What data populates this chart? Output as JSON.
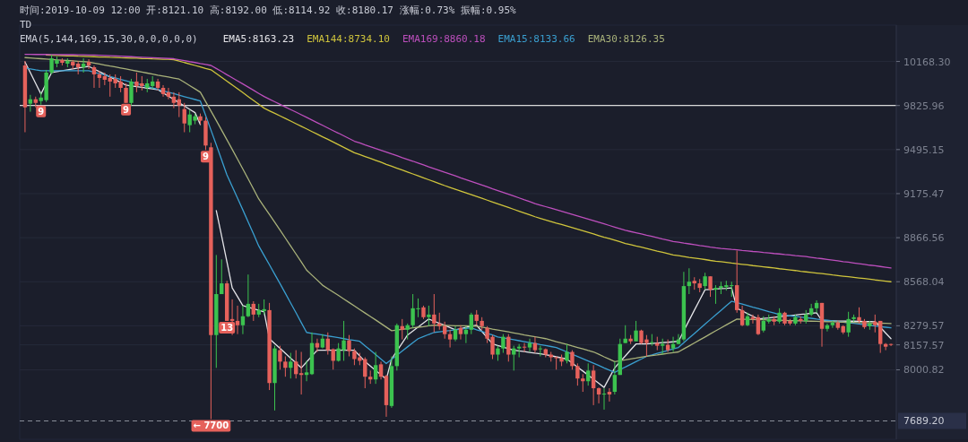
{
  "chart_data": {
    "type": "candlestick",
    "title": "时间:2019-10-09 12:00  开:8121.10  高:8192.00  低:8114.92  收:8180.17  涨幅:0.73%  振幅:0.95%",
    "annotations": [
      "TD",
      "EMA(5,144,169,15,30,0,0,0,0,0)",
      {
        "text": "9",
        "y": 9833
      },
      {
        "text": "9",
        "y": 9846
      },
      {
        "text": "9",
        "y": 9492
      },
      {
        "text": "13",
        "y": 8311
      },
      {
        "text": "← 7700",
        "y": 7700
      }
    ],
    "categories": [
      null,
      null,
      null,
      null,
      null,
      null,
      null,
      null,
      null,
      null,
      null,
      null,
      null,
      null,
      null,
      null,
      null,
      null,
      null,
      null,
      null,
      null,
      null,
      null,
      null,
      null,
      null,
      null,
      null,
      null,
      null,
      null,
      null,
      null,
      null,
      null,
      null,
      null,
      null,
      null,
      null,
      null,
      null,
      null,
      null,
      null,
      null,
      null,
      null,
      null,
      null,
      null,
      null,
      null,
      null,
      null,
      null,
      null,
      null,
      null,
      null,
      null,
      null,
      null,
      null,
      null,
      null,
      null,
      null,
      null,
      null,
      null,
      null,
      null,
      null,
      null,
      null,
      null,
      null,
      null,
      null,
      null,
      null,
      null,
      null,
      null,
      null,
      null,
      null,
      null,
      null,
      null,
      null,
      null,
      null,
      null,
      null,
      null,
      null,
      null,
      null,
      null,
      null,
      null,
      null,
      null,
      null,
      null,
      null,
      null,
      null,
      null,
      null,
      null,
      null,
      null,
      null,
      null,
      null,
      null,
      null,
      null,
      null,
      null,
      null,
      null,
      null,
      null,
      null,
      null,
      null,
      null,
      null,
      null,
      null,
      null,
      null,
      null,
      null,
      null,
      null,
      null,
      null,
      null,
      null,
      null,
      null,
      null,
      null,
      null,
      null,
      null,
      null,
      null,
      null,
      null,
      null,
      null,
      null,
      null,
      null,
      null,
      null,
      null
    ],
    "ohlc": [
      [
        10137,
        10172,
        9624,
        9812
      ],
      [
        9840,
        9908,
        9779,
        9874
      ],
      [
        9874,
        9894,
        9812,
        9846
      ],
      [
        9860,
        9928,
        9833,
        9887
      ],
      [
        9867,
        10102,
        9853,
        10081
      ],
      [
        10081,
        10221,
        10067,
        10193
      ],
      [
        10151,
        10207,
        10123,
        10179
      ],
      [
        10179,
        10193,
        10137,
        10158
      ],
      [
        10151,
        10193,
        10123,
        10172
      ],
      [
        10165,
        10179,
        10109,
        10137
      ],
      [
        10151,
        10172,
        10067,
        10123
      ],
      [
        10123,
        10193,
        10081,
        10151
      ],
      [
        10165,
        10186,
        10109,
        10137
      ],
      [
        10123,
        10137,
        9962,
        10067
      ],
      [
        10067,
        10095,
        9962,
        10039
      ],
      [
        10053,
        10081,
        9983,
        10025
      ],
      [
        10039,
        10067,
        9894,
        10011
      ],
      [
        10032,
        10067,
        9962,
        9997
      ],
      [
        10011,
        10053,
        9928,
        9962
      ],
      [
        9962,
        9997,
        9846,
        9846
      ],
      [
        9846,
        10032,
        9826,
        10011
      ],
      [
        10011,
        10081,
        9928,
        9976
      ],
      [
        9997,
        10053,
        9942,
        9976
      ],
      [
        9962,
        10032,
        9928,
        9997
      ],
      [
        9976,
        10053,
        9955,
        10011
      ],
      [
        10011,
        10032,
        9942,
        9962
      ],
      [
        9962,
        9983,
        9894,
        9914
      ],
      [
        9928,
        9962,
        9874,
        9894
      ],
      [
        9894,
        9928,
        9806,
        9846
      ],
      [
        9874,
        9928,
        9738,
        9826
      ],
      [
        9799,
        9846,
        9624,
        9690
      ],
      [
        9677,
        9792,
        9624,
        9758
      ],
      [
        9711,
        9765,
        9684,
        9744
      ],
      [
        9744,
        9765,
        9684,
        9711
      ],
      [
        9711,
        9738,
        9492,
        9525
      ],
      [
        9512,
        9545,
        7700,
        8220
      ],
      [
        8220,
        8748,
        8013,
        8486
      ],
      [
        8486,
        8718,
        8486,
        8557
      ],
      [
        8557,
        8574,
        8311,
        8311
      ],
      [
        8323,
        8451,
        8220,
        8311
      ],
      [
        8311,
        8410,
        8226,
        8283
      ],
      [
        8283,
        8410,
        8226,
        8341
      ],
      [
        8341,
        8616,
        8335,
        8422
      ],
      [
        8422,
        8439,
        8311,
        8352
      ],
      [
        8352,
        8422,
        8335,
        8381
      ],
      [
        8375,
        8451,
        8352,
        8387
      ],
      [
        8381,
        8428,
        7876,
        7919
      ],
      [
        7919,
        8152,
        7752,
        8135
      ],
      [
        8124,
        8152,
        8002,
        8052
      ],
      [
        8052,
        8085,
        7958,
        8013
      ],
      [
        8013,
        8107,
        7947,
        8052
      ],
      [
        8052,
        8124,
        7947,
        7974
      ],
      [
        7980,
        8113,
        7849,
        7969
      ],
      [
        7969,
        8057,
        7930,
        7985
      ],
      [
        7974,
        8237,
        7969,
        8169
      ],
      [
        8169,
        8197,
        8113,
        8141
      ],
      [
        8141,
        8226,
        8135,
        8197
      ],
      [
        8197,
        8237,
        8096,
        8124
      ],
      [
        8130,
        8135,
        8002,
        8057
      ],
      [
        8057,
        8169,
        8052,
        8135
      ],
      [
        8124,
        8311,
        8057,
        8186
      ],
      [
        8186,
        8220,
        8085,
        8118
      ],
      [
        8118,
        8135,
        8030,
        8068
      ],
      [
        8079,
        8107,
        8030,
        8057
      ],
      [
        8068,
        8079,
        7887,
        7958
      ],
      [
        7958,
        7996,
        7914,
        7941
      ],
      [
        7941,
        8113,
        7914,
        8030
      ],
      [
        8035,
        8052,
        7941,
        7958
      ],
      [
        7963,
        7969,
        7714,
        7784
      ],
      [
        7779,
        8085,
        7768,
        8024
      ],
      [
        8024,
        8294,
        7996,
        8283
      ],
      [
        8277,
        8323,
        8192,
        8254
      ],
      [
        8254,
        8294,
        8192,
        8283
      ],
      [
        8283,
        8486,
        8266,
        8393
      ],
      [
        8387,
        8457,
        8335,
        8393
      ],
      [
        8399,
        8410,
        8323,
        8335
      ],
      [
        8335,
        8410,
        8277,
        8352
      ],
      [
        8352,
        8486,
        8237,
        8294
      ],
      [
        8294,
        8364,
        8254,
        8277
      ],
      [
        8277,
        8306,
        8197,
        8226
      ],
      [
        8226,
        8254,
        8141,
        8192
      ],
      [
        8192,
        8277,
        8180,
        8254
      ],
      [
        8266,
        8283,
        8192,
        8226
      ],
      [
        8226,
        8277,
        8169,
        8254
      ],
      [
        8254,
        8364,
        8226,
        8352
      ],
      [
        8352,
        8381,
        8283,
        8311
      ],
      [
        8311,
        8335,
        8254,
        8277
      ],
      [
        8266,
        8277,
        8169,
        8197
      ],
      [
        8209,
        8220,
        8068,
        8096
      ],
      [
        8096,
        8152,
        8057,
        8135
      ],
      [
        8135,
        8226,
        8107,
        8209
      ],
      [
        8209,
        8226,
        8052,
        8096
      ],
      [
        8096,
        8152,
        7996,
        8135
      ],
      [
        8135,
        8163,
        8079,
        8146
      ],
      [
        8146,
        8169,
        8113,
        8141
      ],
      [
        8141,
        8197,
        8113,
        8169
      ],
      [
        8169,
        8209,
        8107,
        8124
      ],
      [
        8130,
        8152,
        8085,
        8135
      ],
      [
        8130,
        8135,
        8079,
        8096
      ],
      [
        8096,
        8113,
        8052,
        8079
      ],
      [
        8079,
        8085,
        8002,
        8074
      ],
      [
        8074,
        8096,
        8024,
        8052
      ],
      [
        8057,
        8163,
        8041,
        8113
      ],
      [
        8113,
        8124,
        8002,
        8024
      ],
      [
        8024,
        8041,
        7903,
        7947
      ],
      [
        7947,
        7974,
        7865,
        7930
      ],
      [
        7930,
        8041,
        7903,
        7996
      ],
      [
        7996,
        8030,
        7784,
        7887
      ],
      [
        7887,
        7892,
        7795,
        7849
      ],
      [
        7849,
        7887,
        7757,
        7854
      ],
      [
        7865,
        7887,
        7806,
        7849
      ],
      [
        7865,
        8052,
        7849,
        7969
      ],
      [
        7969,
        8197,
        7969,
        8163
      ],
      [
        8169,
        8283,
        8169,
        8197
      ],
      [
        8197,
        8220,
        8163,
        8180
      ],
      [
        8180,
        8311,
        8180,
        8249
      ],
      [
        8249,
        8254,
        8163,
        8169
      ],
      [
        8192,
        8220,
        8085,
        8169
      ],
      [
        8169,
        8226,
        8152,
        8175
      ],
      [
        8169,
        8209,
        8124,
        8152
      ],
      [
        8152,
        8197,
        8096,
        8163
      ],
      [
        8158,
        8192,
        8113,
        8124
      ],
      [
        8135,
        8209,
        8113,
        8163
      ],
      [
        8163,
        8226,
        8163,
        8192
      ],
      [
        8192,
        8634,
        8180,
        8539
      ],
      [
        8539,
        8658,
        8486,
        8568
      ],
      [
        8574,
        8598,
        8515,
        8557
      ],
      [
        8557,
        8586,
        8498,
        8527
      ],
      [
        8539,
        8628,
        8515,
        8604
      ],
      [
        8604,
        8604,
        8468,
        8515
      ],
      [
        8515,
        8545,
        8422,
        8527
      ],
      [
        8527,
        8568,
        8486,
        8539
      ],
      [
        8533,
        8574,
        8509,
        8545
      ],
      [
        8539,
        8568,
        8468,
        8545
      ],
      [
        8545,
        8778,
        8364,
        8381
      ],
      [
        8381,
        8410,
        8277,
        8283
      ],
      [
        8283,
        8364,
        8277,
        8341
      ],
      [
        8335,
        8352,
        8294,
        8323
      ],
      [
        8335,
        8352,
        8220,
        8226
      ],
      [
        8249,
        8341,
        8237,
        8311
      ],
      [
        8306,
        8352,
        8294,
        8323
      ],
      [
        8323,
        8341,
        8283,
        8306
      ],
      [
        8306,
        8393,
        8294,
        8364
      ],
      [
        8364,
        8370,
        8283,
        8294
      ],
      [
        8311,
        8323,
        8283,
        8294
      ],
      [
        8294,
        8352,
        8283,
        8335
      ],
      [
        8323,
        8341,
        8294,
        8311
      ],
      [
        8311,
        8381,
        8294,
        8352
      ],
      [
        8352,
        8422,
        8341,
        8393
      ],
      [
        8393,
        8445,
        8364,
        8428
      ],
      [
        8428,
        8428,
        8146,
        8260
      ],
      [
        8260,
        8294,
        8243,
        8283
      ],
      [
        8283,
        8311,
        8266,
        8300
      ],
      [
        8300,
        8311,
        8254,
        8266
      ],
      [
        8277,
        8283,
        8226,
        8237
      ],
      [
        8237,
        8370,
        8209,
        8323
      ],
      [
        8323,
        8352,
        8306,
        8335
      ],
      [
        8335,
        8399,
        8294,
        8311
      ],
      [
        8311,
        8323,
        8260,
        8271
      ],
      [
        8277,
        8311,
        8254,
        8294
      ],
      [
        8306,
        8352,
        8237,
        8283
      ],
      [
        8311,
        8311,
        8107,
        8163
      ],
      [
        8163,
        8169,
        8124,
        8146
      ],
      [
        8163,
        8165,
        8150,
        8157.57
      ]
    ],
    "series": [
      {
        "name": "EMA5:8163.23",
        "type": "line",
        "color": "#e4e4e8",
        "values": [
          10164,
          10081,
          9997,
          9914,
          9998,
          10081,
          10088,
          10095,
          10102,
          10109,
          10116,
          10123,
          10130,
          10109,
          10088,
          10067,
          10046,
          10025,
          10004,
          9983,
          9977,
          9971,
          9966,
          9960,
          9954,
          9948,
          9923,
          9898,
          9873,
          9847,
          9822,
          9797,
          9772,
          9682,
          null,
          null,
          9055,
          8879,
          8703,
          8527,
          8469,
          8410,
          8400,
          8390,
          8380,
          8370,
          8197,
          8166,
          8136,
          8105,
          8074,
          8044,
          8013,
          8050,
          8087,
          8124,
          8124,
          8124,
          8124,
          8124,
          8124,
          8124,
          8124,
          8088,
          8052,
          8025,
          7997,
          7970,
          7942,
          8068,
          8119,
          8169,
          8220,
          8246,
          8272,
          8297,
          8323,
          8309,
          8295,
          8282,
          8268,
          8254,
          8261,
          8269,
          8276,
          8283,
          8243,
          8203,
          8163,
          8153,
          8144,
          8134,
          8124,
          8119,
          8115,
          8110,
          8105,
          8101,
          8096,
          8089,
          8082,
          8075,
          8068,
          8043,
          8018,
          7993,
          7968,
          7942,
          7917,
          7892,
          7953,
          8013,
          8051,
          8088,
          8126,
          8163,
          8163,
          8163,
          8166,
          8169,
          8172,
          8174,
          8177,
          8180,
          8247,
          8314,
          8381,
          8448,
          8515,
          8517,
          8519,
          8522,
          8524,
          8527,
          8393,
          8376,
          8358,
          8341,
          8323,
          8327,
          8330,
          8334,
          8338,
          8342,
          8345,
          8349,
          8353,
          8356,
          8360,
          8364,
          8312,
          8311,
          8311,
          8310,
          8310,
          8309,
          8309,
          8308,
          8307,
          8307,
          8306,
          8270,
          8233,
          8197
        ]
      },
      {
        "name": "EMA144:8734.10",
        "type": "line",
        "color": "#cfc43c",
        "values": [
          null,
          null,
          null,
          null,
          10219,
          10218,
          10216,
          10215,
          10213,
          10212,
          10210,
          10209,
          10207,
          10206,
          10204,
          10203,
          10201,
          10200,
          10198,
          10197,
          10195,
          10194,
          10192,
          10191,
          10189,
          10188,
          10186,
          10185,
          10183,
          10172,
          10160,
          10149,
          10137,
          10126,
          10114,
          10103,
          10073,
          10044,
          10014,
          9984,
          9955,
          9925,
          9895,
          9865,
          9836,
          9806,
          9786,
          9767,
          9747,
          9728,
          9708,
          9688,
          9669,
          9649,
          9629,
          9610,
          9590,
          9571,
          9551,
          9531,
          9512,
          9492,
          9472,
          9458,
          9444,
          9430,
          9416,
          9402,
          9387,
          9373,
          9359,
          9345,
          9331,
          9317,
          9303,
          9289,
          9275,
          9261,
          9247,
          9233,
          9220,
          9207,
          9194,
          9181,
          9168,
          9155,
          9142,
          9129,
          9116,
          9103,
          9090,
          9077,
          9064,
          9051,
          9038,
          9025,
          9012,
          9001,
          8990,
          8979,
          8968,
          8958,
          8947,
          8936,
          8925,
          8914,
          8903,
          8892,
          8881,
          8870,
          8860,
          8849,
          8838,
          8827,
          8818,
          8809,
          8801,
          8792,
          8783,
          8774,
          8766,
          8757,
          8748,
          8743,
          8738,
          8732,
          8727,
          8722,
          8717,
          8711,
          8706,
          8702,
          8698,
          8693,
          8689,
          8685,
          8681,
          8676,
          8672,
          8668,
          8664,
          8660,
          8655,
          8651,
          8647,
          8643,
          8638,
          8634,
          8630,
          8626,
          8622,
          8618,
          8613,
          8609,
          8605,
          8601,
          8597,
          8593,
          8589,
          8585,
          8580,
          8576,
          8572,
          8568
        ]
      },
      {
        "name": "EMA169:8860.18",
        "type": "line",
        "color": "#bd4fbd",
        "values": [
          10225,
          10225,
          10224,
          10224,
          10224,
          10223,
          10223,
          10222,
          10222,
          10222,
          10221,
          10221,
          10220,
          10220,
          10218,
          10216,
          10214,
          10212,
          10210,
          10208,
          10206,
          10204,
          10202,
          10200,
          10198,
          10196,
          10194,
          10192,
          10190,
          10182,
          10175,
          10167,
          10160,
          10152,
          10145,
          10137,
          10113,
          10089,
          10064,
          10040,
          10016,
          9992,
          9968,
          9944,
          9919,
          9895,
          9875,
          9855,
          9835,
          9815,
          9795,
          9776,
          9756,
          9736,
          9716,
          9696,
          9676,
          9656,
          9636,
          9617,
          9597,
          9577,
          9557,
          9544,
          9530,
          9517,
          9503,
          9490,
          9477,
          9463,
          9450,
          9436,
          9423,
          9410,
          9396,
          9383,
          9369,
          9356,
          9343,
          9329,
          9316,
          9303,
          9289,
          9276,
          9263,
          9250,
          9237,
          9224,
          9210,
          9197,
          9184,
          9171,
          9158,
          9145,
          9131,
          9118,
          9105,
          9094,
          9083,
          9072,
          9061,
          9050,
          9039,
          9028,
          9017,
          9006,
          8995,
          8984,
          8973,
          8962,
          8951,
          8940,
          8929,
          8918,
          8909,
          8901,
          8892,
          8883,
          8875,
          8866,
          8857,
          8849,
          8840,
          8835,
          8829,
          8824,
          8819,
          8813,
          8808,
          8802,
          8797,
          8793,
          8790,
          8786,
          8783,
          8779,
          8776,
          8772,
          8769,
          8765,
          8762,
          8758,
          8755,
          8751,
          8748,
          8744,
          8741,
          8737,
          8732,
          8727,
          8723,
          8718,
          8713,
          8708,
          8703,
          8699,
          8694,
          8689,
          8684,
          8679,
          8675,
          8670,
          8665,
          8660
        ]
      },
      {
        "name": "EMA15:8133.66",
        "type": "line",
        "color": "#3a9fd0",
        "values": [
          10117,
          10110,
          10102,
          10095,
          10095,
          10095,
          10095,
          10095,
          10095,
          10095,
          10095,
          10095,
          10095,
          10084,
          10073,
          10062,
          10050,
          10039,
          10028,
          10017,
          10006,
          9995,
          9984,
          9972,
          9961,
          9950,
          9939,
          9928,
          9917,
          9905,
          9894,
          9883,
          9872,
          9860,
          9750,
          9640,
          9530,
          9420,
          9310,
          9227,
          9143,
          9060,
          8976,
          8893,
          8809,
          8745,
          8682,
          8618,
          8555,
          8491,
          8427,
          8364,
          8300,
          8237,
          8231,
          8226,
          8220,
          8214,
          8209,
          8203,
          8197,
          8191,
          8186,
          8180,
          8152,
          8124,
          8096,
          8068,
          8040,
          8066,
          8092,
          8119,
          8145,
          8171,
          8197,
          8210,
          8224,
          8237,
          8241,
          8245,
          8249,
          8254,
          8258,
          8262,
          8266,
          8254,
          8243,
          8231,
          8220,
          8208,
          8202,
          8196,
          8190,
          8184,
          8178,
          8172,
          8166,
          8159,
          8153,
          8147,
          8141,
          8127,
          8113,
          8098,
          8084,
          8070,
          8056,
          8042,
          8028,
          8013,
          7999,
          7985,
          8002,
          8018,
          8035,
          8052,
          8068,
          8085,
          8094,
          8104,
          8113,
          8122,
          8132,
          8141,
          8171,
          8201,
          8230,
          8260,
          8290,
          8320,
          8350,
          8379,
          8409,
          8439,
          8429,
          8420,
          8410,
          8400,
          8391,
          8381,
          8371,
          8362,
          8352,
          8348,
          8344,
          8340,
          8336,
          8332,
          8328,
          8323,
          8319,
          8315,
          8311,
          8307,
          8303,
          8299,
          8295,
          8291,
          8287,
          8283,
          8278,
          8274,
          8270,
          8266
        ]
      },
      {
        "name": "EMA30:8126.35",
        "type": "line",
        "color": "#a9b27a",
        "values": [
          10199,
          10196,
          10193,
          10190,
          10187,
          10184,
          10181,
          10179,
          10176,
          10173,
          10170,
          10167,
          10164,
          10156,
          10148,
          10140,
          10132,
          10125,
          10117,
          10109,
          10101,
          10093,
          10085,
          10077,
          10069,
          10061,
          10054,
          10046,
          10038,
          10030,
          10005,
          9979,
          9954,
          9928,
          9856,
          9784,
          9712,
          9640,
          9568,
          9497,
          9425,
          9353,
          9281,
          9209,
          9137,
          9082,
          9028,
          8973,
          8919,
          8864,
          8810,
          8755,
          8701,
          8646,
          8612,
          8579,
          8545,
          8522,
          8499,
          8477,
          8454,
          8431,
          8408,
          8385,
          8362,
          8340,
          8317,
          8294,
          8271,
          8248,
          8252,
          8257,
          8261,
          8266,
          8270,
          8274,
          8279,
          8283,
          8282,
          8282,
          8281,
          8280,
          8280,
          8279,
          8278,
          8277,
          8271,
          8265,
          8258,
          8252,
          8246,
          8240,
          8234,
          8228,
          8221,
          8215,
          8209,
          8203,
          8197,
          8188,
          8178,
          8169,
          8160,
          8150,
          8141,
          8132,
          8122,
          8113,
          8098,
          8082,
          8067,
          8052,
          8058,
          8063,
          8069,
          8074,
          8080,
          8085,
          8090,
          8094,
          8099,
          8104,
          8108,
          8113,
          8132,
          8151,
          8170,
          8189,
          8208,
          8228,
          8247,
          8266,
          8285,
          8304,
          8323,
          8322,
          8321,
          8320,
          8319,
          8318,
          8317,
          8316,
          8315,
          8314,
          8313,
          8312,
          8311,
          8310,
          8309,
          8308,
          8307,
          8306,
          8305,
          8304,
          8303,
          8302,
          8301,
          8300,
          8299,
          8298,
          8297,
          8296,
          8295,
          8294
        ]
      }
    ],
    "log": true,
    "ylim": [
      7580,
      10460
    ],
    "yticks": [
      {
        "value": 10168.3,
        "label": "10168.30"
      },
      {
        "value": 9825.96,
        "label": "9825.96"
      },
      {
        "value": 9495.15,
        "label": "9495.15"
      },
      {
        "value": 9175.47,
        "label": "9175.47"
      },
      {
        "value": 8866.56,
        "label": "8866.56"
      },
      {
        "value": 8568.04,
        "label": "8568.04"
      },
      {
        "value": 8279.57,
        "label": "8279.57"
      },
      {
        "value": 8157.57,
        "label": "8157.57"
      },
      {
        "value": 8000.82,
        "label": "8000.82"
      }
    ],
    "ref_lines": [
      {
        "axis": "y",
        "value": 9825.96,
        "color": "#d9d9d9",
        "line_style": "solid"
      },
      {
        "axis": "y",
        "value": 7689.2,
        "label": "7689.20",
        "color": "#8a8f9a",
        "line_style": "dashed"
      }
    ],
    "grid": "y",
    "tick_labels": "y"
  }
}
